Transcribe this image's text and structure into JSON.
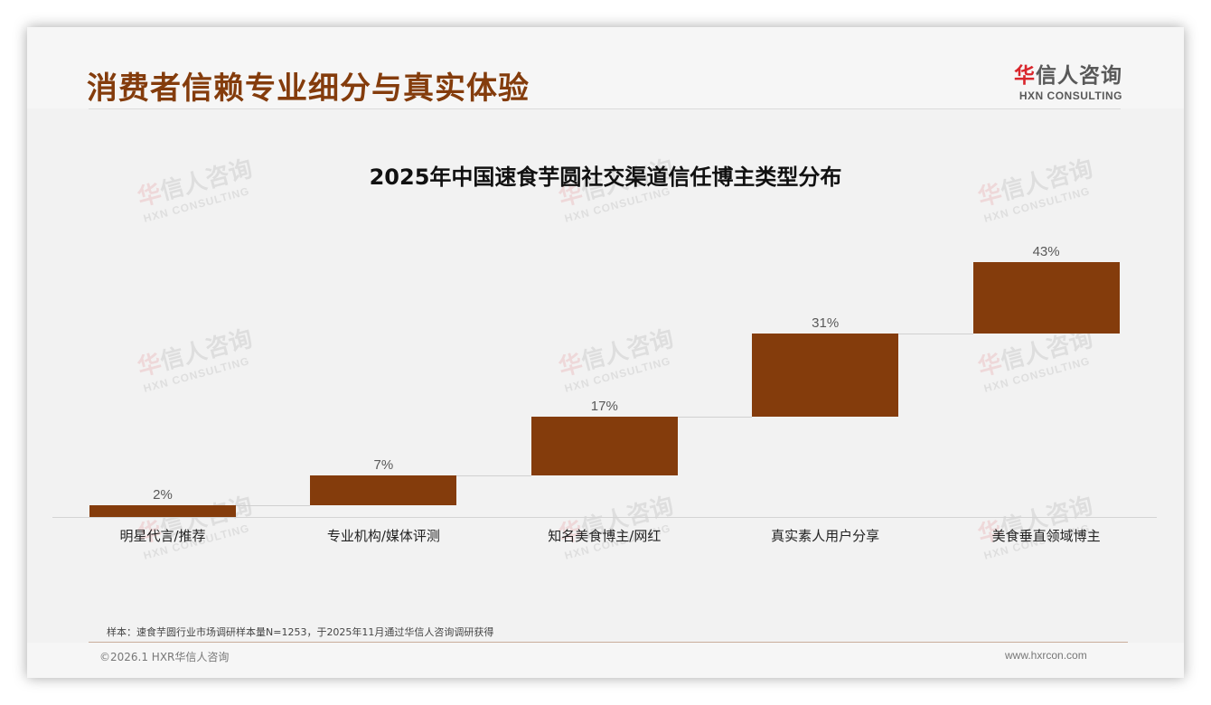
{
  "header": {
    "title": "消费者信赖专业细分与真实体验",
    "logo": {
      "cn_accent": "华",
      "cn_rest": "信人咨询",
      "en": "HXN CONSULTING"
    }
  },
  "watermark": {
    "cn_accent": "华",
    "cn_rest": "信人咨询",
    "en": "HXN CONSULTING"
  },
  "chart_data": {
    "type": "bar",
    "subtype": "waterfall",
    "title": "2025年中国速食芋圆社交渠道信任博主类型分布",
    "categories": [
      "明星代言/推荐",
      "专业机构/媒体评测",
      "知名美食博主/网红",
      "真实素人用户分享",
      "美食垂直领域博主"
    ],
    "values": [
      2,
      7,
      17,
      31,
      43
    ],
    "value_labels": [
      "2%",
      "7%",
      "17%",
      "31%",
      "43%"
    ],
    "increments": [
      2,
      5,
      10,
      14,
      12
    ],
    "xlabel": "",
    "ylabel": "",
    "ylim": [
      0,
      45
    ],
    "grid": false,
    "legend": "none",
    "bar_color": "#843c0c"
  },
  "footer": {
    "note": "样本：速食芋圆行业市场调研样本量N=1253，于2025年11月通过华信人咨询调研获得",
    "copyright": "©2026.1 HXR华信人咨询",
    "website": "www.hxrcon.com"
  },
  "colors": {
    "brand": "#843c0c",
    "logo_accent": "#d9262c"
  }
}
